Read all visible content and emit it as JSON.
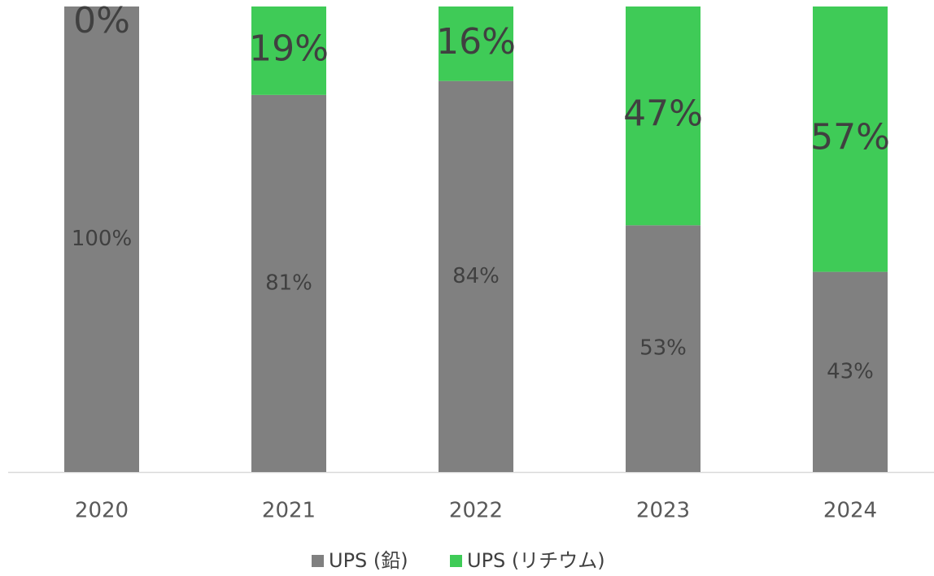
{
  "chart_data": {
    "type": "stacked-bar",
    "categories": [
      "2020",
      "2021",
      "2022",
      "2023",
      "2024"
    ],
    "series": [
      {
        "name": "UPS (鉛)",
        "color": "#808080",
        "values": [
          100,
          81,
          84,
          53,
          43
        ],
        "value_labels": [
          "100%",
          "81%",
          "84%",
          "53%",
          "43%"
        ]
      },
      {
        "name": "UPS (リチウム)",
        "color": "#3fcb57",
        "values": [
          0,
          19,
          16,
          47,
          57
        ],
        "value_labels": [
          "0%",
          "19%",
          "16%",
          "47%",
          "57%"
        ]
      }
    ],
    "ylim": [
      0,
      100
    ],
    "legend": "bottom"
  }
}
